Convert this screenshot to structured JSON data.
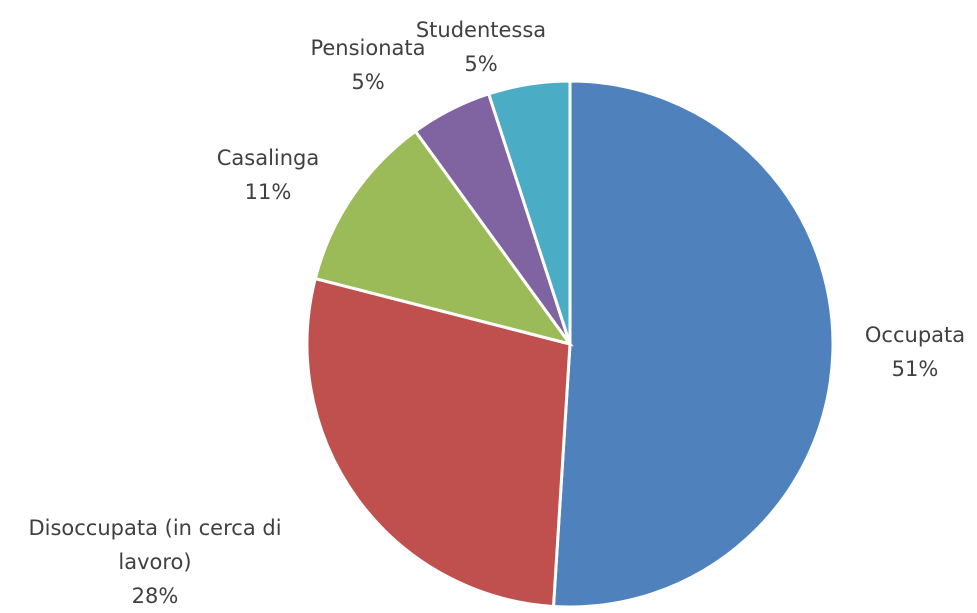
{
  "chart_data": {
    "type": "pie",
    "categories": [
      "Occupata",
      "Disoccupata (in cerca di lavoro)",
      "Casalinga",
      "Pensionata",
      "Studentessa"
    ],
    "values": [
      51,
      28,
      11,
      5,
      5
    ],
    "value_labels": [
      "51%",
      "28%",
      "11%",
      "5%",
      "5%"
    ],
    "colors": [
      "#4f81bd",
      "#c0504d",
      "#9bbb59",
      "#8064a2",
      "#4bacc6"
    ]
  }
}
